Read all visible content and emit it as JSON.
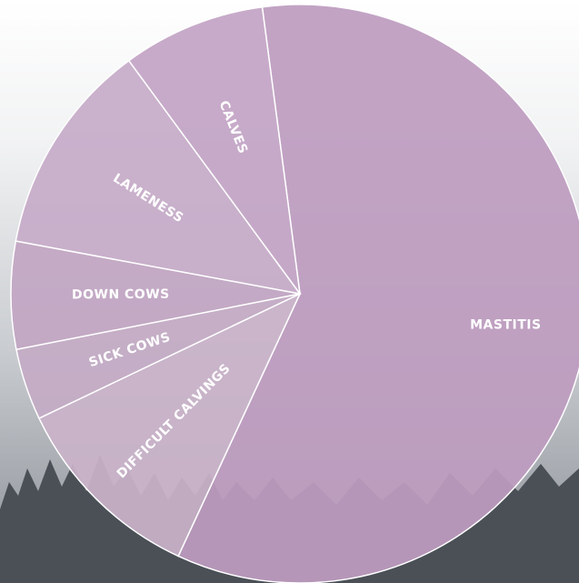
{
  "chart_data": {
    "type": "pie",
    "categories": [
      "MASTITIS",
      "DIFFICULT CALVINGS",
      "SICK  COWS",
      "DOWN COWS",
      "LAMENESS",
      "CALVES"
    ],
    "values": [
      59,
      11,
      4,
      6,
      12,
      8
    ],
    "colors": [
      "#bd9cbf",
      "#c9b3c9",
      "#c4abc5",
      "#c2a6c3",
      "#c6abc8",
      "#c3a4c5"
    ]
  }
}
